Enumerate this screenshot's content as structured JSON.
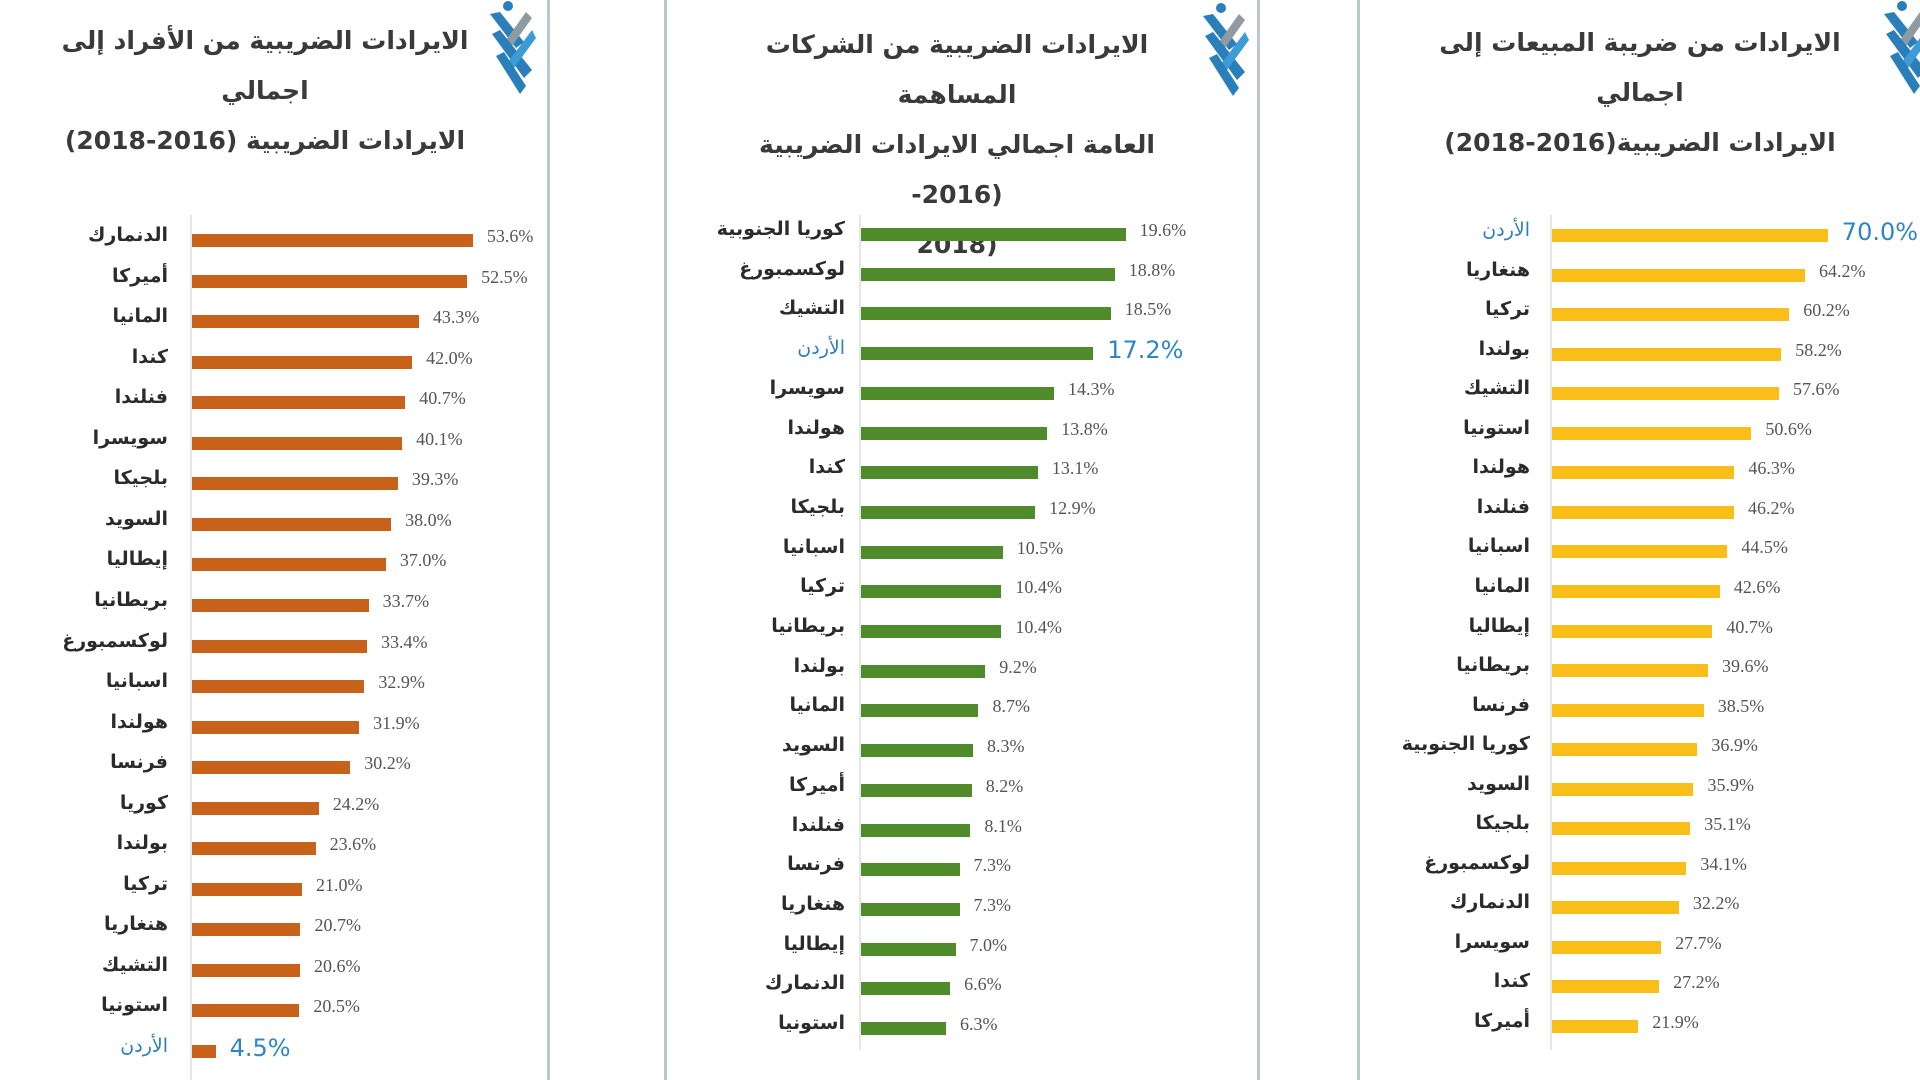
{
  "colors": {
    "individuals_bar": "#c8621b",
    "corporate_bar": "#4f8a2b",
    "sales_bar": "#f9bf18",
    "highlight_text": "#2f86c4",
    "divider": "#b9c9cf"
  },
  "panels": [
    {
      "id": "individuals",
      "title_line1": "الايرادات الضريبية من الأفراد إلى اجمالي",
      "title_line2": "الايرادات الضريبية (2016-2018)",
      "title_line3": ""
    },
    {
      "id": "corporate",
      "title_line1": "الايرادات الضريبية من الشركات المساهمة",
      "title_line2": "العامة اجمالي الايرادات الضريبية (2016-",
      "title_line3": "(2018"
    },
    {
      "id": "sales",
      "title_line1": "الايرادات من ضريبة المبيعات إلى اجمالي",
      "title_line2": "الايرادات الضريبية(2016-2018)",
      "title_line3": ""
    }
  ],
  "chart_data": [
    {
      "type": "bar",
      "orientation": "horizontal",
      "title": "الايرادات الضريبية من الأفراد إلى اجمالي الايرادات الضريبية (2016-2018)",
      "xlabel": "",
      "ylabel": "",
      "grid": false,
      "bar_color": "#c8621b",
      "highlight": "الأردن",
      "categories": [
        "الدنمارك",
        "أميركا",
        "المانيا",
        "كندا",
        "فنلندا",
        "سويسرا",
        "بلجيكا",
        "السويد",
        "إيطاليا",
        "بريطانيا",
        "لوكسمبورغ",
        "اسبانيا",
        "هولندا",
        "فرنسا",
        "كوريا",
        "بولندا",
        "تركيا",
        "هنغاريا",
        "التشيك",
        "استونيا",
        "الأردن"
      ],
      "values": [
        53.6,
        52.5,
        43.3,
        42.0,
        40.7,
        40.1,
        39.3,
        38.0,
        37.0,
        33.7,
        33.4,
        32.9,
        31.9,
        30.2,
        24.2,
        23.6,
        21.0,
        20.7,
        20.6,
        20.5,
        4.5
      ],
      "labels": [
        "53.6%",
        "52.5%",
        "43.3%",
        "42.0%",
        "40.7%",
        "40.1%",
        "39.3%",
        "38.0%",
        "37.0%",
        "33.7%",
        "33.4%",
        "32.9%",
        "31.9%",
        "30.2%",
        "24.2%",
        "23.6%",
        "21.0%",
        "20.7%",
        "20.6%",
        "20.5%",
        "4.5%"
      ]
    },
    {
      "type": "bar",
      "orientation": "horizontal",
      "title": "الايرادات الضريبية من الشركات المساهمة العامة اجمالي الايرادات الضريبية (2016-2018)",
      "xlabel": "",
      "ylabel": "",
      "grid": false,
      "bar_color": "#4f8a2b",
      "highlight": "الأردن",
      "categories": [
        "كوريا الجنوبية",
        "لوكسمبورغ",
        "التشيك",
        "الأردن",
        "سويسرا",
        "هولندا",
        "كندا",
        "بلجيكا",
        "اسبانيا",
        "تركيا",
        "بريطانيا",
        "بولندا",
        "المانيا",
        "السويد",
        "أميركا",
        "فنلندا",
        "فرنسا",
        "هنغاريا",
        "إيطاليا",
        "الدنمارك",
        "استونيا"
      ],
      "values": [
        19.6,
        18.8,
        18.5,
        17.2,
        14.3,
        13.8,
        13.1,
        12.9,
        10.5,
        10.4,
        10.4,
        9.2,
        8.7,
        8.3,
        8.2,
        8.1,
        7.3,
        7.3,
        7.0,
        6.6,
        6.3
      ],
      "labels": [
        "19.6%",
        "18.8%",
        "18.5%",
        "17.2%",
        "14.3%",
        "13.8%",
        "13.1%",
        "12.9%",
        "10.5%",
        "10.4%",
        "10.4%",
        "9.2%",
        "8.7%",
        "8.3%",
        "8.2%",
        "8.1%",
        "7.3%",
        "7.3%",
        "7.0%",
        "6.6%",
        "6.3%"
      ]
    },
    {
      "type": "bar",
      "orientation": "horizontal",
      "title": "الايرادات من ضريبة المبيعات إلى اجمالي الايرادات الضريبية(2016-2018)",
      "xlabel": "",
      "ylabel": "",
      "grid": false,
      "bar_color": "#f9bf18",
      "highlight": "الأردن",
      "categories": [
        "الأردن",
        "هنغاريا",
        "تركيا",
        "بولندا",
        "التشيك",
        "استونيا",
        "هولندا",
        "فنلندا",
        "اسبانيا",
        "المانيا",
        "إيطاليا",
        "بريطانيا",
        "فرنسا",
        "كوريا الجنوبية",
        "السويد",
        "بلجيكا",
        "لوكسمبورغ",
        "الدنمارك",
        "سويسرا",
        "كندا",
        "أميركا"
      ],
      "values": [
        70.0,
        64.2,
        60.2,
        58.2,
        57.6,
        50.6,
        46.3,
        46.2,
        44.5,
        42.6,
        40.7,
        39.6,
        38.5,
        36.9,
        35.9,
        35.1,
        34.1,
        32.2,
        27.7,
        27.2,
        21.9
      ],
      "labels": [
        "70.0%",
        "64.2%",
        "60.2%",
        "58.2%",
        "57.6%",
        "50.6%",
        "46.3%",
        "46.2%",
        "44.5%",
        "42.6%",
        "40.7%",
        "39.6%",
        "38.5%",
        "36.9%",
        "35.9%",
        "35.1%",
        "34.1%",
        "32.2%",
        "27.7%",
        "27.2%",
        "21.9%"
      ]
    }
  ]
}
